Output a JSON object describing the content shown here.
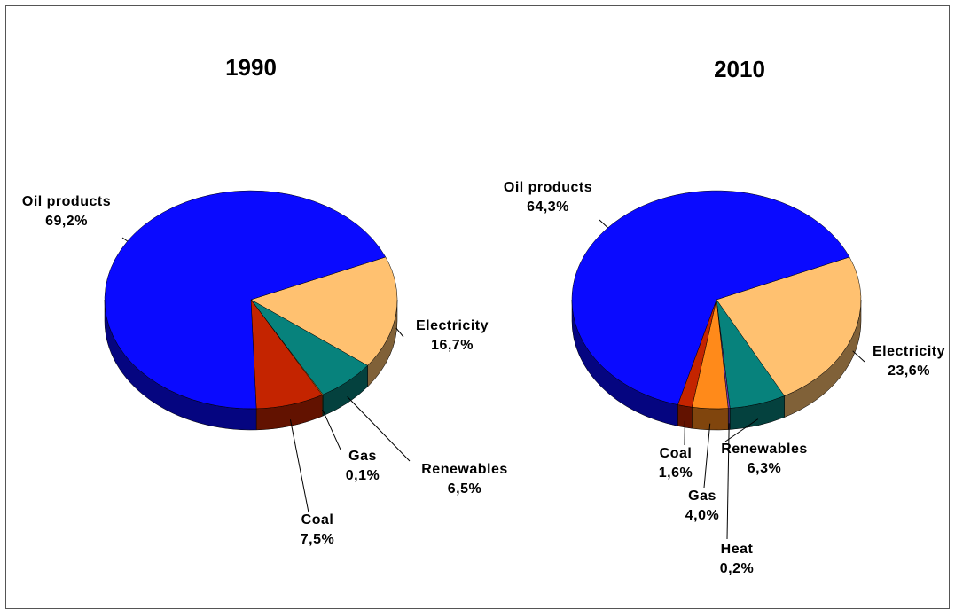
{
  "chart_data": [
    {
      "type": "pie",
      "title": "1990",
      "categories": [
        "Electricity",
        "Renewables",
        "Gas",
        "Coal",
        "Oil products"
      ],
      "values": [
        16.7,
        6.5,
        0.1,
        7.5,
        69.2
      ],
      "value_labels": [
        "16,7%",
        "6,5%",
        "0,1%",
        "7,5%",
        "69,2%"
      ],
      "colors": [
        "#ffc170",
        "#07827c",
        "#ff8a1a",
        "#c42400",
        "#0a0aff"
      ]
    },
    {
      "type": "pie",
      "title": "2010",
      "categories": [
        "Electricity",
        "Renewables",
        "Heat",
        "Gas",
        "Coal",
        "Oil products"
      ],
      "values": [
        23.6,
        6.3,
        0.2,
        4.0,
        1.6,
        64.3
      ],
      "value_labels": [
        "23,6%",
        "6,3%",
        "0,2%",
        "4,0%",
        "1,6%",
        "64,3%"
      ],
      "colors": [
        "#ffc170",
        "#07827c",
        "#7a3cb0",
        "#ff8a1a",
        "#c42400",
        "#0a0aff"
      ]
    }
  ]
}
